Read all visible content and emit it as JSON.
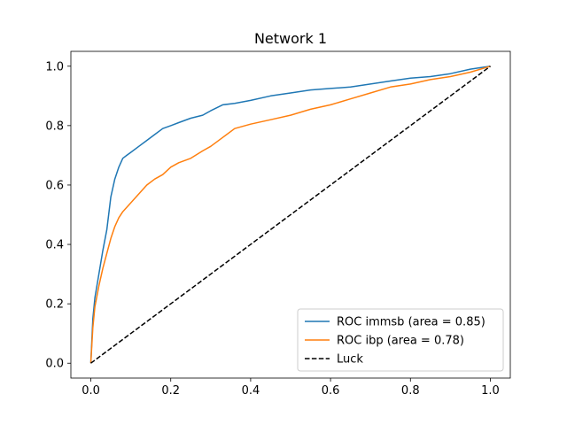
{
  "chart_data": {
    "type": "line",
    "title": "Network 1",
    "xlabel": "",
    "ylabel": "",
    "xlim": [
      -0.05,
      1.05
    ],
    "ylim": [
      -0.05,
      1.05
    ],
    "xticks": [
      "0.0",
      "0.2",
      "0.4",
      "0.6",
      "0.8",
      "1.0"
    ],
    "yticks": [
      "0.0",
      "0.2",
      "0.4",
      "0.6",
      "0.8",
      "1.0"
    ],
    "grid": false,
    "legend_position": "lower-right",
    "series": [
      {
        "name": "ROC immsb (area = 0.85)",
        "color": "#1f77b4",
        "style": "solid",
        "x": [
          0,
          0.005,
          0.01,
          0.02,
          0.03,
          0.04,
          0.05,
          0.06,
          0.07,
          0.08,
          0.09,
          0.1,
          0.12,
          0.14,
          0.16,
          0.18,
          0.2,
          0.22,
          0.25,
          0.28,
          0.3,
          0.33,
          0.36,
          0.4,
          0.45,
          0.5,
          0.55,
          0.6,
          0.65,
          0.7,
          0.75,
          0.8,
          0.85,
          0.9,
          0.95,
          1.0
        ],
        "y": [
          0,
          0.15,
          0.22,
          0.3,
          0.38,
          0.45,
          0.56,
          0.62,
          0.66,
          0.69,
          0.7,
          0.71,
          0.73,
          0.75,
          0.77,
          0.79,
          0.8,
          0.81,
          0.825,
          0.835,
          0.85,
          0.87,
          0.875,
          0.885,
          0.9,
          0.91,
          0.92,
          0.925,
          0.93,
          0.94,
          0.95,
          0.96,
          0.965,
          0.975,
          0.99,
          1.0
        ]
      },
      {
        "name": "ROC ibp (area = 0.78)",
        "color": "#ff7f0e",
        "style": "solid",
        "x": [
          0,
          0.005,
          0.01,
          0.02,
          0.03,
          0.04,
          0.05,
          0.06,
          0.07,
          0.08,
          0.1,
          0.12,
          0.14,
          0.16,
          0.18,
          0.2,
          0.22,
          0.25,
          0.28,
          0.3,
          0.33,
          0.36,
          0.4,
          0.45,
          0.5,
          0.55,
          0.6,
          0.65,
          0.7,
          0.75,
          0.8,
          0.85,
          0.9,
          0.95,
          1.0
        ],
        "y": [
          0,
          0.12,
          0.19,
          0.26,
          0.32,
          0.37,
          0.42,
          0.46,
          0.49,
          0.51,
          0.54,
          0.57,
          0.6,
          0.62,
          0.635,
          0.66,
          0.675,
          0.69,
          0.715,
          0.73,
          0.76,
          0.79,
          0.805,
          0.82,
          0.835,
          0.855,
          0.87,
          0.89,
          0.91,
          0.93,
          0.94,
          0.955,
          0.965,
          0.98,
          1.0
        ]
      },
      {
        "name": "Luck",
        "color": "#000000",
        "style": "dashed",
        "x": [
          0,
          1
        ],
        "y": [
          0,
          1
        ]
      }
    ]
  }
}
